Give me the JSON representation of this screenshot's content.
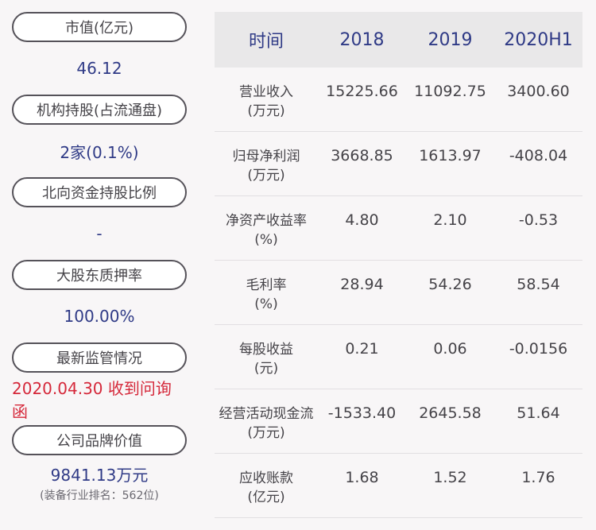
{
  "left": {
    "items": [
      {
        "label": "市值(亿元)",
        "value": "46.12"
      },
      {
        "label": "机构持股(占流通盘)",
        "value": "2家(0.1%)"
      },
      {
        "label": "北向资金持股比例",
        "value": "-"
      },
      {
        "label": "大股东质押率",
        "value": "100.00%"
      },
      {
        "label": "最新监管情况",
        "value": "2020.04.30 收到问询函"
      },
      {
        "label": "公司品牌价值",
        "value": "9841.13万元",
        "sub": "(装备行业排名：562位)"
      }
    ],
    "colors": {
      "value": "#2f3a86",
      "alert": "#d5283a"
    }
  },
  "table": {
    "headers": [
      "时间",
      "2018",
      "2019",
      "2020H1"
    ],
    "rows": [
      {
        "label1": "营业收入",
        "label2": "(万元)",
        "values": [
          "15225.66",
          "11092.75",
          "3400.60"
        ]
      },
      {
        "label1": "归母净利润",
        "label2": "(万元)",
        "values": [
          "3668.85",
          "1613.97",
          "-408.04"
        ]
      },
      {
        "label1": "净资产收益率",
        "label2": "(%)",
        "values": [
          "4.80",
          "2.10",
          "-0.53"
        ]
      },
      {
        "label1": "毛利率",
        "label2": "(%)",
        "values": [
          "28.94",
          "54.26",
          "58.54"
        ]
      },
      {
        "label1": "每股收益",
        "label2": "(元)",
        "values": [
          "0.21",
          "0.06",
          "-0.0156"
        ]
      },
      {
        "label1": "经营活动现金流",
        "label2": "(万元)",
        "values": [
          "-1533.40",
          "2645.58",
          "51.64"
        ]
      },
      {
        "label1": "应收账款",
        "label2": "(亿元)",
        "values": [
          "1.68",
          "1.52",
          "1.76"
        ]
      }
    ],
    "colors": {
      "header_bg": "#e9e8e9",
      "header_text": "#2f3a86"
    }
  }
}
